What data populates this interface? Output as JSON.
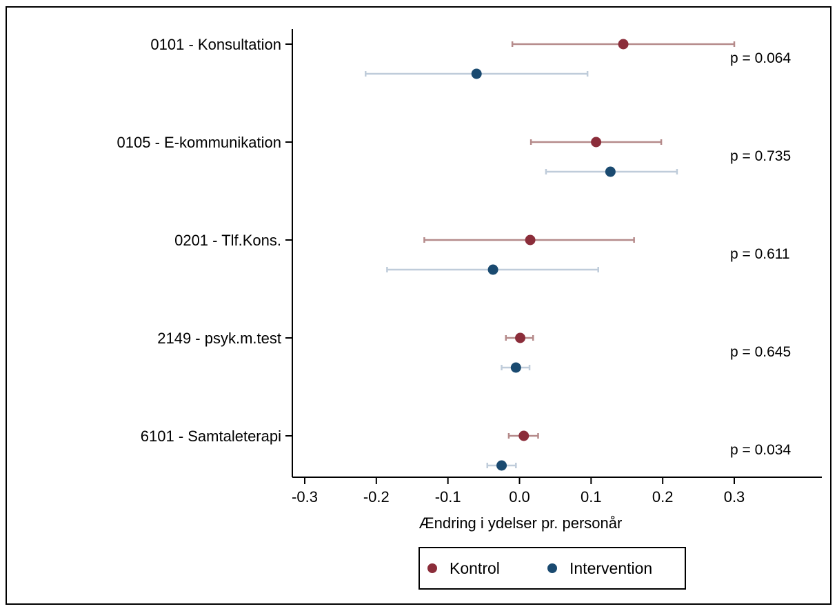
{
  "chart_data": {
    "type": "scatter",
    "subtype": "forest-plot-with-error-bars",
    "xlabel": "Ændring i ydelser pr. personår",
    "xlim": [
      -0.3,
      0.3
    ],
    "xticks": [
      "-0.3",
      "-0.2",
      "-0.1",
      "0.0",
      "0.1",
      "0.2",
      "0.3"
    ],
    "grid": false,
    "legend_position": "bottom-center",
    "colors": {
      "Kontrol": "#8b2d3a",
      "Intervention": "#1a4a70",
      "ci_Kontrol": "#b58a8a",
      "ci_Intervention": "#bfccda"
    },
    "categories": [
      "0101 - Konsultation",
      "0105 - E-kommunikation",
      "0201 - Tlf.Kons.",
      "2149 - psyk.m.test",
      "6101 - Samtaleterapi"
    ],
    "series": [
      {
        "name": "Kontrol",
        "estimates": [
          0.145,
          0.107,
          0.015,
          0.001,
          0.006
        ],
        "ci_low": [
          -0.01,
          0.016,
          -0.133,
          -0.019,
          -0.015
        ],
        "ci_high": [
          0.3,
          0.198,
          0.16,
          0.019,
          0.026
        ]
      },
      {
        "name": "Intervention",
        "estimates": [
          -0.06,
          0.127,
          -0.037,
          -0.005,
          -0.025
        ],
        "ci_low": [
          -0.215,
          0.037,
          -0.185,
          -0.025,
          -0.045
        ],
        "ci_high": [
          0.095,
          0.22,
          0.11,
          0.014,
          -0.005
        ]
      }
    ],
    "annotations": [
      "p = 0.064",
      "p = 0.735",
      "p = 0.611",
      "p = 0.645",
      "p = 0.034"
    ]
  }
}
